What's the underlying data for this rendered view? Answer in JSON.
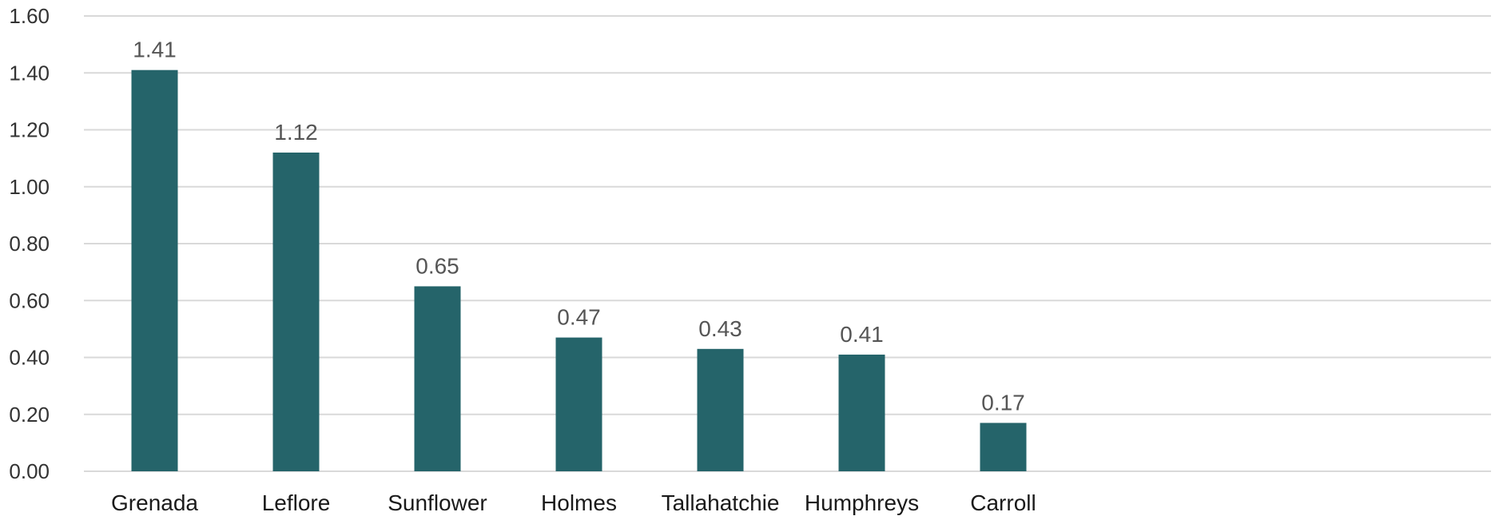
{
  "chart_data": {
    "type": "bar",
    "categories": [
      "Grenada",
      "Leflore",
      "Sunflower",
      "Holmes",
      "Tallahatchie",
      "Humphreys",
      "Carroll"
    ],
    "values": [
      1.41,
      1.12,
      0.65,
      0.47,
      0.43,
      0.41,
      0.17
    ],
    "value_labels": [
      "1.41",
      "1.12",
      "0.65",
      "0.47",
      "0.43",
      "0.41",
      "0.17"
    ],
    "y_ticks": [
      "0.00",
      "0.20",
      "0.40",
      "0.60",
      "0.80",
      "1.00",
      "1.20",
      "1.40",
      "1.60"
    ],
    "ylim": [
      0,
      1.6
    ],
    "grid": true,
    "legend": "none",
    "bar_color": "#25646a",
    "grid_color": "#d9d9d9"
  }
}
